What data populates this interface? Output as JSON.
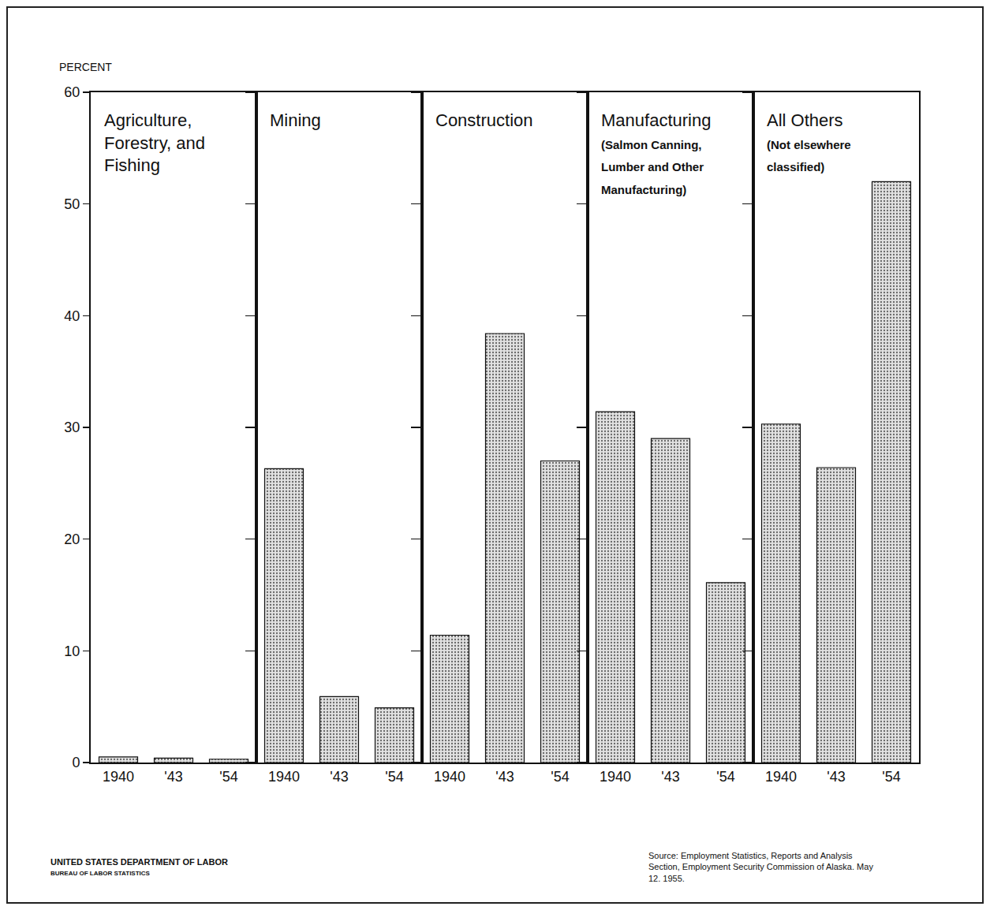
{
  "chart_data": [
    {
      "type": "bar",
      "title": "Agriculture, Forestry, and Fishing",
      "ylabel": "PERCENT",
      "categories": [
        "1940",
        "'43",
        "'54"
      ],
      "values": [
        0.5,
        0.4,
        0.3
      ],
      "color": "#e2e2e2",
      "ylim": [
        0,
        60
      ],
      "yticks": [
        0,
        10,
        20,
        30,
        40,
        50,
        60
      ],
      "grid": false
    },
    {
      "type": "bar",
      "title": "Mining",
      "categories": [
        "1940",
        "'43",
        "'54"
      ],
      "values": [
        26.3,
        5.9,
        4.9
      ],
      "color": "#e2e2e2",
      "ylim": [
        0,
        60
      ],
      "yticks": [
        0,
        10,
        20,
        30,
        40,
        50,
        60
      ],
      "grid": false,
      "tick_labels": "x"
    },
    {
      "type": "bar",
      "title": "Construction",
      "categories": [
        "1940",
        "'43",
        "'54"
      ],
      "values": [
        11.4,
        38.4,
        27.0
      ],
      "color": "#e2e2e2",
      "ylim": [
        0,
        60
      ],
      "yticks": [
        0,
        10,
        20,
        30,
        40,
        50,
        60
      ],
      "grid": false,
      "tick_labels": "x"
    },
    {
      "type": "bar",
      "title": "Manufacturing",
      "subtitle": "(Salmon Canning, Lumber and Other Manufacturing)",
      "categories": [
        "1940",
        "'43",
        "'54"
      ],
      "values": [
        31.4,
        29.0,
        16.1
      ],
      "color": "#e2e2e2",
      "ylim": [
        0,
        60
      ],
      "yticks": [
        0,
        10,
        20,
        30,
        40,
        50,
        60
      ],
      "grid": false,
      "tick_labels": "x"
    },
    {
      "type": "bar",
      "title": "All Others",
      "subtitle": "(Not elsewhere classified)",
      "categories": [
        "1940",
        "'43",
        "'54"
      ],
      "values": [
        30.3,
        26.4,
        52.0
      ],
      "color": "#e2e2e2",
      "ylim": [
        0,
        60
      ],
      "yticks": [
        0,
        10,
        20,
        30,
        40,
        50,
        60
      ],
      "grid": false,
      "tick_labels": "x"
    }
  ],
  "footer": {
    "agency": "UNITED STATES DEPARTMENT OF LABOR",
    "bureau": "BUREAU OF LABOR STATISTICS",
    "source": "Source: Employment Statistics, Reports and Analysis Section, Employment Security Commission of Alaska. May 12. 1955."
  }
}
